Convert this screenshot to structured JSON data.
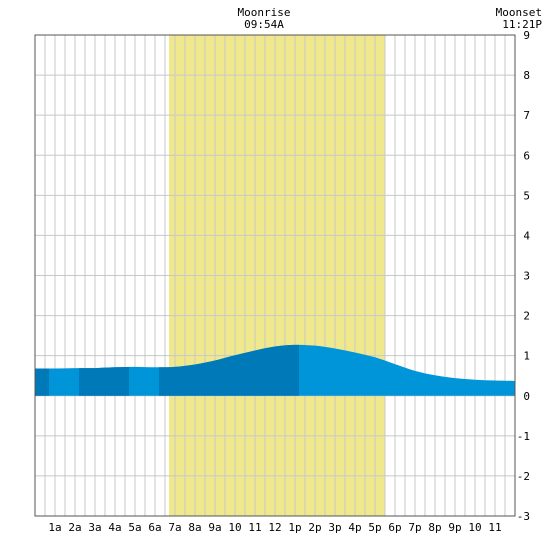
{
  "chart_data": {
    "type": "area",
    "x_tick_labels": [
      "1a",
      "2a",
      "3a",
      "4a",
      "5a",
      "6a",
      "7a",
      "8a",
      "9a",
      "10",
      "11",
      "12",
      "1p",
      "2p",
      "3p",
      "4p",
      "5p",
      "6p",
      "7p",
      "8p",
      "9p",
      "10",
      "11"
    ],
    "x_range_hours": [
      0,
      24
    ],
    "ylim": [
      -3,
      9
    ],
    "y_ticks": [
      9,
      8,
      7,
      6,
      5,
      4,
      3,
      2,
      1,
      0,
      -1,
      -2,
      -3
    ],
    "grid": true,
    "shaded_interval": {
      "start_hour": 6.7,
      "end_hour": 17.5,
      "color": "#f0e88c"
    },
    "annotations": [
      {
        "title": "Moonrise",
        "time": "09:54A",
        "hour": 11.1
      },
      {
        "title": "Moonset",
        "time": "11:21P",
        "hour": 24.0
      }
    ],
    "series": [
      {
        "x": [
          0,
          1,
          2,
          3,
          4,
          5,
          6,
          7,
          8,
          9,
          10,
          11,
          12,
          13,
          14,
          15,
          16,
          17,
          18,
          19,
          20,
          21,
          22,
          23,
          24
        ],
        "values": [
          0.68,
          0.68,
          0.69,
          0.69,
          0.71,
          0.72,
          0.71,
          0.72,
          0.78,
          0.88,
          1.01,
          1.13,
          1.23,
          1.27,
          1.25,
          1.18,
          1.08,
          0.96,
          0.79,
          0.62,
          0.51,
          0.44,
          0.4,
          0.38,
          0.37
        ]
      }
    ],
    "fill_colors": {
      "light": "#0095d9",
      "dark": "#0079b8"
    },
    "dark_bands": [
      [
        0,
        0.7
      ],
      [
        2.2,
        4.7
      ],
      [
        6.2,
        13.2
      ]
    ]
  }
}
